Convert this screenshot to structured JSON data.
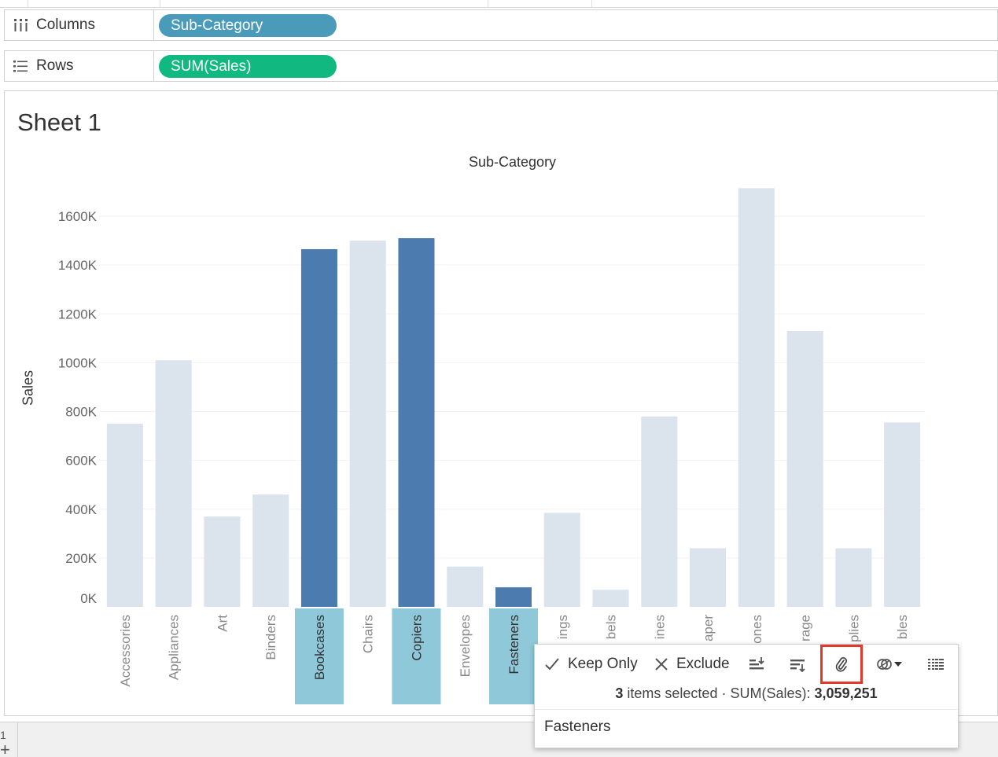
{
  "shelves": {
    "columns": {
      "label": "Columns",
      "pill": "Sub-Category",
      "pill_color": "#4a9bb9"
    },
    "rows": {
      "label": "Rows",
      "pill": "SUM(Sales)",
      "pill_color": "#11b981"
    }
  },
  "sheet": {
    "title": "Sheet 1"
  },
  "colors": {
    "bar_default": "#dbe3ed",
    "bar_selected": "#4c7bb0",
    "label_selected_bg": "#8ec8d9",
    "gridline": "#f2f2f2",
    "highlight": "#e03a2d"
  },
  "chart_data": {
    "type": "bar",
    "xlabel": "Sub-Category",
    "ylabel": "Sales",
    "ylim": [
      0,
      1700000
    ],
    "yticks": [
      {
        "value": 0,
        "label": "0K"
      },
      {
        "value": 200000,
        "label": "200K"
      },
      {
        "value": 400000,
        "label": "400K"
      },
      {
        "value": 600000,
        "label": "600K"
      },
      {
        "value": 800000,
        "label": "800K"
      },
      {
        "value": 1000000,
        "label": "1000K"
      },
      {
        "value": 1200000,
        "label": "1200K"
      },
      {
        "value": 1400000,
        "label": "1400K"
      },
      {
        "value": 1600000,
        "label": "1600K"
      }
    ],
    "categories": [
      "Accessories",
      "Appliances",
      "Art",
      "Binders",
      "Bookcases",
      "Chairs",
      "Copiers",
      "Envelopes",
      "Fasteners",
      "ings",
      "bels",
      "ines",
      "aper",
      "ones",
      "rage",
      "plies",
      "bles"
    ],
    "values": [
      750000,
      1010000,
      370000,
      460000,
      1465000,
      1500000,
      1510000,
      165000,
      80000,
      385000,
      70000,
      780000,
      240000,
      1715000,
      1130000,
      240000,
      755000
    ],
    "selected": [
      false,
      false,
      false,
      false,
      true,
      false,
      true,
      false,
      true,
      false,
      false,
      false,
      false,
      false,
      false,
      false,
      false
    ],
    "grid": true
  },
  "tooltip": {
    "keep_only": "Keep Only",
    "exclude": "Exclude",
    "items_count": "3",
    "items_text": "items selected",
    "dot": "·",
    "measure_label": "SUM(Sales):",
    "measure_value": "3,059,251",
    "detail": "Fasteners",
    "icons": [
      "check-icon",
      "x-icon",
      "sort-ascending-icon",
      "sort-descending-icon",
      "paperclip-icon",
      "group-icon",
      "view-data-icon"
    ]
  },
  "footer": {
    "add_sheet": "+",
    "tab_text": "1"
  }
}
